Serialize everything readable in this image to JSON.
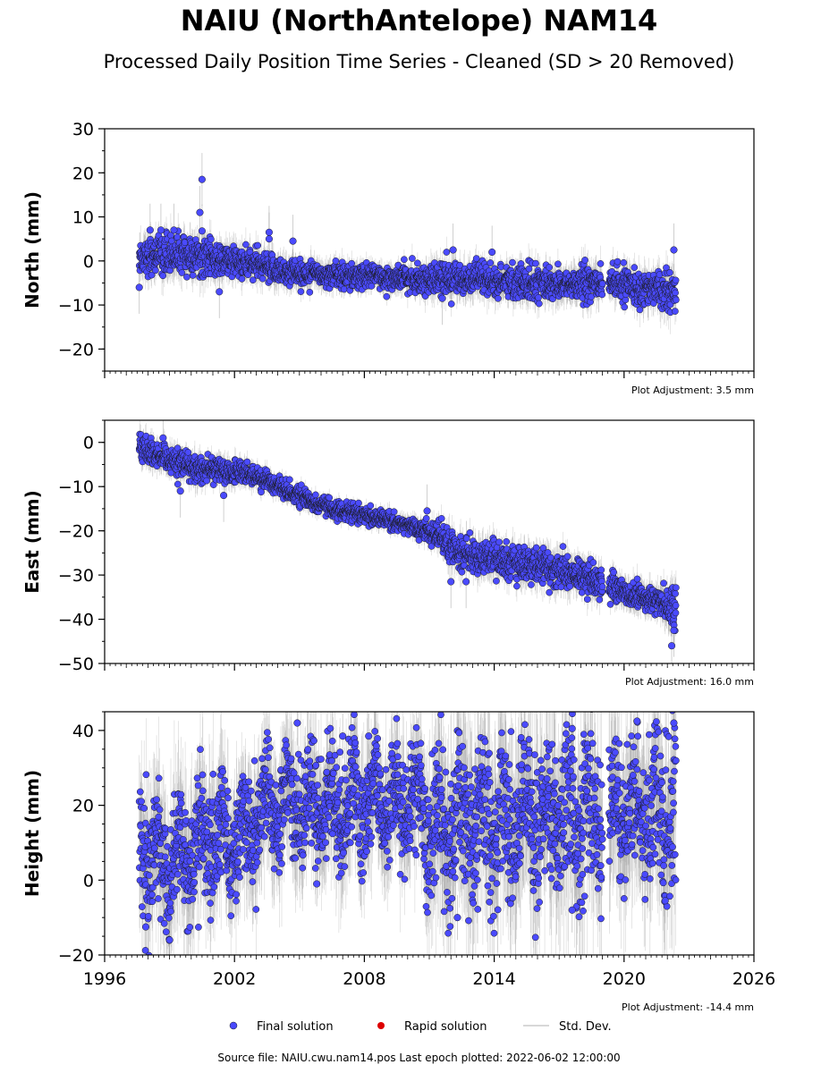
{
  "title": "NAIU (NorthAntelope) NAM14",
  "subtitle": "Processed Daily Position Time Series - Cleaned (SD > 20 Removed)",
  "footer": "Source file: NAIU.cwu.nam14.pos  Last epoch plotted: 2022-06-02 12:00:00",
  "legend": {
    "placement": "bottom-center",
    "items": [
      {
        "label": "Final solution",
        "color": "#4a4aff",
        "marker": "circle"
      },
      {
        "label": "Rapid solution",
        "color": "#dd0000",
        "marker": "circle"
      },
      {
        "label": "Std. Dev.",
        "color": "#cccccc",
        "marker": "line"
      }
    ]
  },
  "colors": {
    "final": "#4a4aff",
    "final_edge": "#1a1a1a",
    "rapid": "#dd0000",
    "stddev": "#8a8a8a"
  },
  "chart_data": [
    {
      "type": "scatter",
      "ylabel": "North (mm)",
      "ylim": [
        -25,
        30
      ],
      "yticks": [
        -20,
        -10,
        0,
        10,
        20,
        30
      ],
      "xlim": [
        1996,
        2026
      ],
      "adjustment": "Plot Adjustment: 3.5 mm",
      "series": [
        {
          "name": "Final solution",
          "segments": [
            {
              "x": [
                1997.6,
                1998.5,
                1999.5,
                2000.5,
                2001.5,
                2002.5,
                2003.5,
                2004.5,
                2005.5,
                2006.5,
                2007.5,
                2008.5,
                2009.5,
                2010.5,
                2011.5,
                2012.5,
                2013.5,
                2014.5,
                2015.5,
                2016.5,
                2017.5,
                2018.5,
                2019.0
              ],
              "y": [
                1.0,
                1.5,
                1.5,
                0.5,
                0.0,
                -0.5,
                -1.5,
                -2.5,
                -3.0,
                -3.0,
                -3.5,
                -3.5,
                -4.0,
                -4.0,
                -4.2,
                -4.0,
                -4.5,
                -4.8,
                -5.0,
                -5.2,
                -5.5,
                -5.0,
                -5.0
              ],
              "spread": [
                2.0,
                2.0,
                2.0,
                2.0,
                1.8,
                1.7,
                1.6,
                1.5,
                1.5,
                1.3,
                1.3,
                1.3,
                1.3,
                1.4,
                1.8,
                1.8,
                1.8,
                1.8,
                1.8,
                1.8,
                1.8,
                1.8,
                1.8
              ]
            },
            {
              "x": [
                2019.3,
                2019.8,
                2020.5,
                2021.2,
                2021.7,
                2022.4
              ],
              "y": [
                -5.0,
                -5.5,
                -6.0,
                -6.0,
                -6.5,
                -6.5
              ],
              "spread": [
                1.8,
                1.8,
                1.8,
                1.8,
                2.0,
                2.0
              ]
            }
          ],
          "outliers": [
            [
              1997.6,
              -6
            ],
            [
              1998.1,
              7
            ],
            [
              1998.6,
              7
            ],
            [
              1999.2,
              7
            ],
            [
              2000.5,
              18.5
            ],
            [
              2000.4,
              11
            ],
            [
              2000.5,
              6.8
            ],
            [
              2001.3,
              -7
            ],
            [
              2003.6,
              6.5
            ],
            [
              2003.6,
              5
            ],
            [
              2004.7,
              4.5
            ],
            [
              2012.1,
              2.5
            ],
            [
              2013.9,
              2
            ],
            [
              2022.3,
              2.5
            ],
            [
              2011.6,
              -8.5
            ]
          ]
        }
      ]
    },
    {
      "type": "scatter",
      "ylabel": "East (mm)",
      "ylim": [
        -50,
        5
      ],
      "yticks": [
        -50,
        -40,
        -30,
        -20,
        -10,
        0
      ],
      "xlim": [
        1996,
        2026
      ],
      "adjustment": "Plot Adjustment: 16.0 mm",
      "series": [
        {
          "name": "Final solution",
          "segments": [
            {
              "x": [
                1997.6,
                1998.5,
                1999.5,
                2000.5,
                2001.5,
                2002.5,
                2003.5,
                2004.5,
                2005.5,
                2006.5,
                2007.5,
                2008.5,
                2009.5,
                2010.5,
                2011.5,
                2011.9,
                2012.5,
                2013.5,
                2014.5,
                2015.5,
                2016.5,
                2017.5,
                2018.5,
                2019.0
              ],
              "y": [
                -1.0,
                -3.5,
                -5.0,
                -6.0,
                -6.5,
                -7.0,
                -8.5,
                -11.0,
                -13.5,
                -15.0,
                -16.0,
                -17.0,
                -18.0,
                -19.5,
                -21.0,
                -23.0,
                -25.5,
                -26.0,
                -27.0,
                -27.5,
                -28.5,
                -29.5,
                -31.0,
                -31.5
              ],
              "spread": [
                1.5,
                1.5,
                1.5,
                1.5,
                1.3,
                1.2,
                1.1,
                1.0,
                0.9,
                0.9,
                0.9,
                0.9,
                0.9,
                1.0,
                1.4,
                1.8,
                1.8,
                1.8,
                1.8,
                1.8,
                1.8,
                1.8,
                1.8,
                1.8
              ]
            },
            {
              "x": [
                2019.3,
                2019.8,
                2020.5,
                2021.2,
                2021.7,
                2022.4
              ],
              "y": [
                -32.5,
                -33.5,
                -34.5,
                -35.5,
                -36.0,
                -37.5
              ],
              "spread": [
                1.5,
                1.5,
                1.5,
                1.5,
                1.8,
                2.5
              ]
            }
          ],
          "outliers": [
            [
              1998.7,
              1
            ],
            [
              1999.5,
              -11
            ],
            [
              2001.5,
              -12
            ],
            [
              2010.9,
              -15.5
            ],
            [
              2012.0,
              -31.5
            ],
            [
              2012.7,
              -31.5
            ],
            [
              2022.2,
              -46
            ],
            [
              2022.3,
              -42.5
            ]
          ]
        }
      ]
    },
    {
      "type": "scatter",
      "ylabel": "Height (mm)",
      "xlabel": "",
      "ylim": [
        -20,
        45
      ],
      "yticks": [
        -20,
        0,
        20,
        40
      ],
      "xlim": [
        1996,
        2026
      ],
      "xticks": [
        1996,
        2002,
        2008,
        2014,
        2020,
        2026
      ],
      "adjustment": "Plot Adjustment: -14.4 mm",
      "series": [
        {
          "name": "Final solution",
          "segments": [
            {
              "x": [
                1997.6,
                1998.5,
                1999.5,
                2000.5,
                2001.5,
                2002.5,
                2003.5,
                2004.5,
                2005.5,
                2006.5,
                2007.5,
                2008.5,
                2009.5,
                2010.5,
                2011.5,
                2012.5,
                2013.5,
                2014.5,
                2015.5,
                2016.5,
                2017.5,
                2018.5,
                2019.0
              ],
              "y": [
                8,
                5,
                6,
                10,
                10,
                14,
                20,
                22,
                20,
                20,
                21,
                21,
                20,
                19,
                12,
                14,
                15,
                16,
                17,
                17,
                17,
                17,
                17
              ],
              "spread": [
                7,
                8,
                8,
                8,
                7,
                7,
                7,
                7,
                7,
                7,
                7,
                7,
                7,
                7,
                10,
                10,
                10,
                10,
                10,
                10,
                10,
                10,
                10
              ],
              "amplitude": 7
            },
            {
              "x": [
                2019.3,
                2019.8,
                2020.5,
                2021.2,
                2021.7,
                2022.4
              ],
              "y": [
                18,
                17,
                19,
                18,
                18,
                19
              ],
              "spread": [
                9,
                9,
                9,
                9,
                10,
                10
              ],
              "amplitude": 7
            }
          ],
          "outliers": [
            [
              2004.9,
              42
            ],
            [
              2020.6,
              42.5
            ],
            [
              2022.3,
              42
            ],
            [
              2017.6,
              40.5
            ],
            [
              2007.0,
              38.5
            ],
            [
              2008.2,
              38.5
            ],
            [
              1999.0,
              -16
            ],
            [
              1997.9,
              -12.5
            ],
            [
              2005.8,
              -1
            ],
            [
              2021.9,
              -5.5
            ],
            [
              2012.3,
              -10
            ],
            [
              2017.6,
              -8
            ]
          ]
        }
      ]
    }
  ]
}
